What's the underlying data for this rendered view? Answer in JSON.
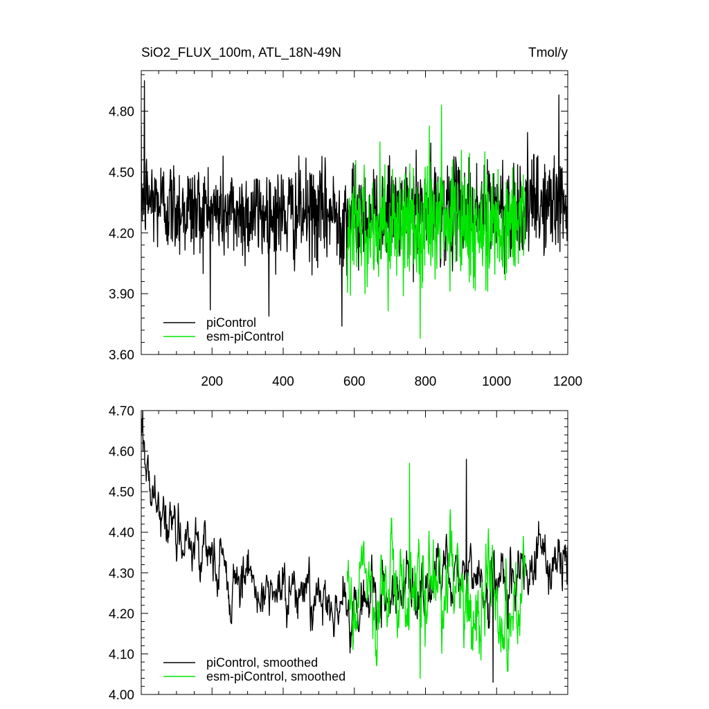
{
  "figure": {
    "title_left": "SiO2_FLUX_100m, ATL_18N-49N",
    "title_right": "Tmol/y"
  },
  "colors": {
    "piControl": "#000000",
    "esm": "#00e600"
  },
  "chart_data": [
    {
      "type": "line",
      "title": "SiO2_FLUX_100m, ATL_18N-49N",
      "units": "Tmol/y",
      "xlim": [
        1,
        1200
      ],
      "ylim": [
        3.6,
        5.0
      ],
      "xticks": [
        200,
        400,
        600,
        800,
        1000,
        1200
      ],
      "xtick_labels": [
        "200",
        "400",
        "600",
        "800",
        "1000",
        "1200"
      ],
      "yticks": [
        3.6,
        3.9,
        4.2,
        4.5,
        4.8
      ],
      "ytick_labels": [
        "3.60",
        "3.90",
        "4.20",
        "4.50",
        "4.80"
      ],
      "legend": [
        "piControl",
        "esm-piControl"
      ],
      "legend_position": "bottom-left",
      "series": [
        {
          "name": "piControl",
          "x_start": 1,
          "x_end": 1200,
          "approx_mean": 4.32,
          "approx_range": [
            3.74,
            4.95
          ]
        },
        {
          "name": "esm-piControl",
          "x_start": 580,
          "x_end": 1080,
          "approx_mean": 4.24,
          "approx_range": [
            3.68,
            4.83
          ]
        }
      ],
      "annotated_extremes": [
        {
          "series": "piControl",
          "x": 10,
          "y": 4.95
        },
        {
          "series": "piControl",
          "x": 565,
          "y": 3.74
        },
        {
          "series": "piControl",
          "x": 1175,
          "y": 4.88
        },
        {
          "series": "esm-piControl",
          "x": 785,
          "y": 3.68
        },
        {
          "series": "esm-piControl",
          "x": 845,
          "y": 4.83
        }
      ]
    },
    {
      "type": "line",
      "xlim": [
        1,
        1200
      ],
      "ylim": [
        4.0,
        4.7
      ],
      "xticks": [
        200,
        400,
        600,
        800,
        1000,
        1200
      ],
      "yticks": [
        4.0,
        4.1,
        4.2,
        4.3,
        4.4,
        4.5,
        4.6,
        4.7
      ],
      "ytick_labels": [
        "4.00",
        "4.10",
        "4.20",
        "4.30",
        "4.40",
        "4.50",
        "4.60",
        "4.70"
      ],
      "legend": [
        "piControl, smoothed",
        "esm-piControl, smoothed"
      ],
      "legend_position": "bottom-left",
      "series": [
        {
          "name": "piControl, smoothed",
          "x_start": 1,
          "x_end": 1200,
          "approx_mean": 4.3,
          "approx_range": [
            4.03,
            4.7
          ]
        },
        {
          "name": "esm-piControl, smoothed",
          "x_start": 580,
          "x_end": 1080,
          "approx_mean": 4.25,
          "approx_range": [
            4.04,
            4.57
          ]
        }
      ],
      "annotated_extremes": [
        {
          "series": "piControl, smoothed",
          "x": 5,
          "y": 4.7
        },
        {
          "series": "piControl, smoothed",
          "x": 915,
          "y": 4.58
        },
        {
          "series": "piControl, smoothed",
          "x": 990,
          "y": 4.03
        },
        {
          "series": "esm-piControl, smoothed",
          "x": 755,
          "y": 4.57
        },
        {
          "series": "esm-piControl, smoothed",
          "x": 785,
          "y": 4.04
        }
      ]
    }
  ]
}
